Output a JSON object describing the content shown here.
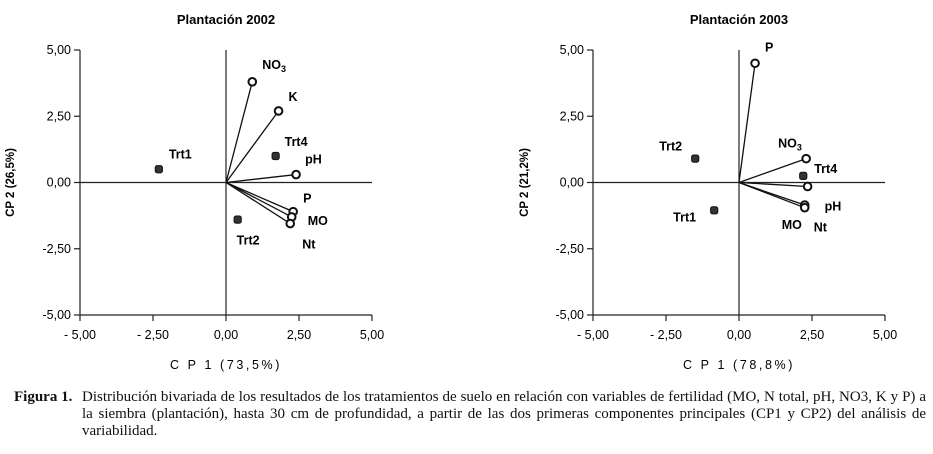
{
  "chart_data": [
    {
      "type": "scatter",
      "title": "Plantación 2002",
      "xlabel": "C P 1 (73,5%)",
      "ylabel": "CP 2 (26,5%)",
      "xlim": [
        -5,
        5
      ],
      "ylim": [
        -5,
        5
      ],
      "xticks": [
        "- 5,00",
        "- 2,50",
        "0,00",
        "2,50",
        "5,00"
      ],
      "yticks": [
        "5,00",
        "2,50",
        "0,00",
        "-2,50",
        "-5,00"
      ],
      "grid": false,
      "variables": [
        {
          "name": "NO",
          "sub": "3",
          "x": 0.9,
          "y": 3.8
        },
        {
          "name": "K",
          "x": 1.8,
          "y": 2.7
        },
        {
          "name": "pH",
          "x": 2.4,
          "y": 0.3
        },
        {
          "name": "P",
          "x": 2.3,
          "y": -1.1
        },
        {
          "name": "MO",
          "x": 2.25,
          "y": -1.3
        },
        {
          "name": "Nt",
          "x": 2.2,
          "y": -1.55
        }
      ],
      "treatments": [
        {
          "name": "Trt1",
          "x": -2.3,
          "y": 0.5
        },
        {
          "name": "Trt4",
          "x": 1.7,
          "y": 1.0
        },
        {
          "name": "Trt2",
          "x": 0.4,
          "y": -1.4
        }
      ]
    },
    {
      "type": "scatter",
      "title": "Plantación 2003",
      "xlabel": "C P 1 (78,8%)",
      "ylabel": "CP 2 (21,2%)",
      "xlim": [
        -5,
        5
      ],
      "ylim": [
        -5,
        5
      ],
      "xticks": [
        "- 5,00",
        "- 2,50",
        "0,00",
        "2,50",
        "5,00"
      ],
      "yticks": [
        "5,00",
        "2,50",
        "0,00",
        "-2,50",
        "-5,00"
      ],
      "grid": false,
      "variables": [
        {
          "name": "P",
          "x": 0.55,
          "y": 4.5
        },
        {
          "name": "NO",
          "sub": "3",
          "x": 2.3,
          "y": 0.9
        },
        {
          "name": "pH",
          "x": 2.35,
          "y": -0.15
        },
        {
          "name": "MO",
          "x": 2.25,
          "y": -0.85
        },
        {
          "name": "Nt",
          "x": 2.25,
          "y": -0.95
        }
      ],
      "treatments": [
        {
          "name": "Trt2",
          "x": -1.5,
          "y": 0.9
        },
        {
          "name": "Trt4",
          "x": 2.2,
          "y": 0.25
        },
        {
          "name": "Trt1",
          "x": -0.85,
          "y": -1.05
        }
      ]
    }
  ],
  "caption": {
    "label": "Figura 1.",
    "text": "Distribución bivariada de los resultados de los tratamientos de suelo en relación con variables de fertilidad (MO, N total, pH, NO3, K y P) a la siembra (plantación), hasta 30 cm de profundidad, a partir de las dos primeras componentes principales (CP1 y CP2) del análisis de variabilidad."
  }
}
